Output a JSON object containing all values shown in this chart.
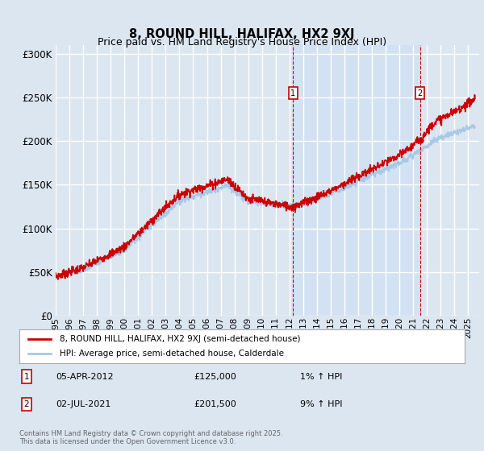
{
  "title": "8, ROUND HILL, HALIFAX, HX2 9XJ",
  "subtitle": "Price paid vs. HM Land Registry's House Price Index (HPI)",
  "ylabel_ticks": [
    "£0",
    "£50K",
    "£100K",
    "£150K",
    "£200K",
    "£250K",
    "£300K"
  ],
  "ytick_values": [
    0,
    50000,
    100000,
    150000,
    200000,
    250000,
    300000
  ],
  "ylim": [
    0,
    310000
  ],
  "xlim_start": 1995.0,
  "xlim_end": 2025.8,
  "background_color": "#dce6f1",
  "grid_color": "#ffffff",
  "hpi_color": "#a8c8e8",
  "price_color": "#cc0000",
  "shade_color": "#ddeeff",
  "marker1_x": 2012.27,
  "marker1_y": 125000,
  "marker2_x": 2021.5,
  "marker2_y": 201500,
  "legend_label1": "8, ROUND HILL, HALIFAX, HX2 9XJ (semi-detached house)",
  "legend_label2": "HPI: Average price, semi-detached house, Calderdale",
  "annotation1_date": "05-APR-2012",
  "annotation1_price": "£125,000",
  "annotation1_hpi": "1% ↑ HPI",
  "annotation2_date": "02-JUL-2021",
  "annotation2_price": "£201,500",
  "annotation2_hpi": "9% ↑ HPI",
  "footer": "Contains HM Land Registry data © Crown copyright and database right 2025.\nThis data is licensed under the Open Government Licence v3.0.",
  "xtick_years": [
    1995,
    1996,
    1997,
    1998,
    1999,
    2000,
    2001,
    2002,
    2003,
    2004,
    2005,
    2006,
    2007,
    2008,
    2009,
    2010,
    2011,
    2012,
    2013,
    2014,
    2015,
    2016,
    2017,
    2018,
    2019,
    2020,
    2021,
    2022,
    2023,
    2024,
    2025
  ]
}
